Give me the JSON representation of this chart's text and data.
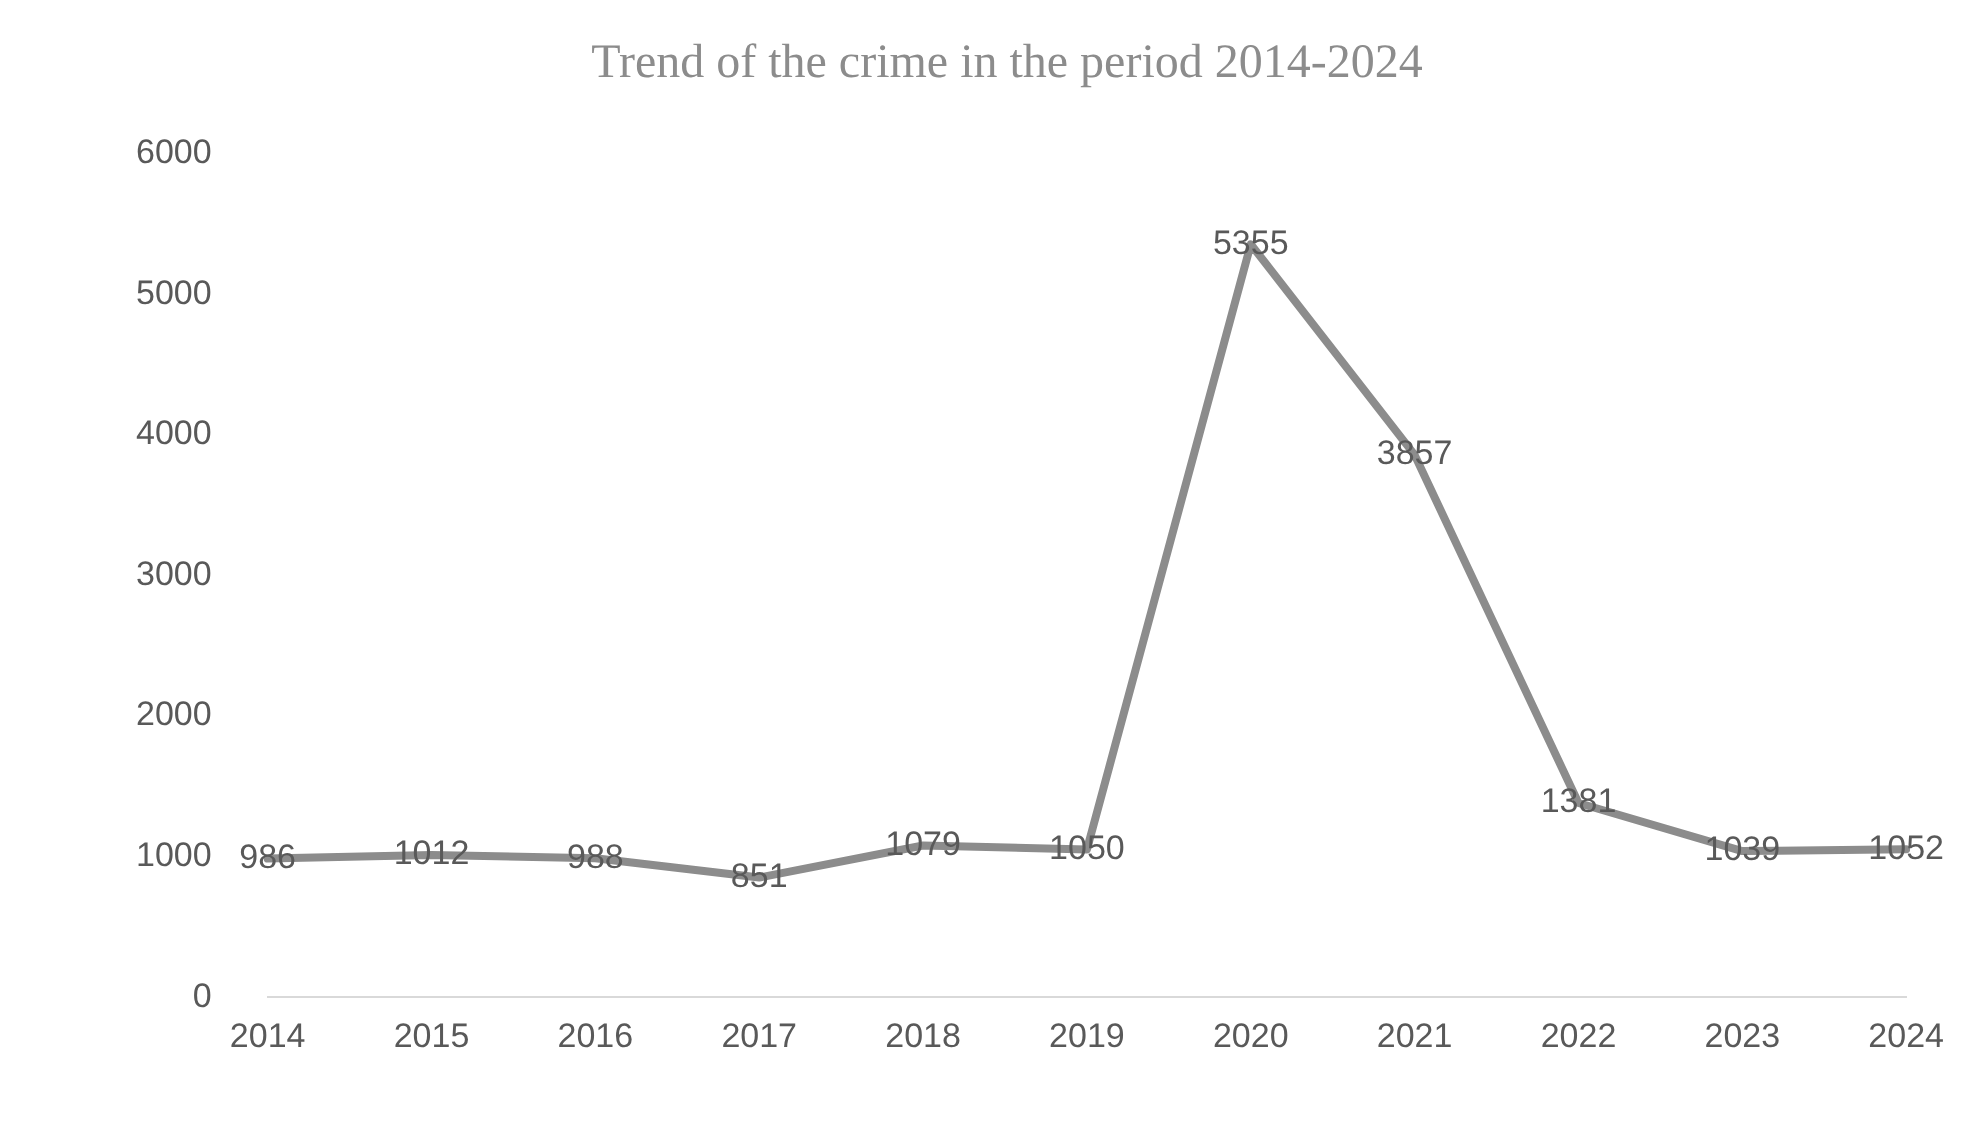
{
  "chart_data": {
    "type": "line",
    "title": "Trend of the crime in the period 2014-2024",
    "categories": [
      "2014",
      "2015",
      "2016",
      "2017",
      "2018",
      "2019",
      "2020",
      "2021",
      "2022",
      "2023",
      "2024"
    ],
    "series": [
      {
        "color": "#8c8c8c",
        "values": [
          986,
          1012,
          988,
          851,
          1079,
          1050,
          5355,
          3857,
          1381,
          1039,
          1052
        ]
      }
    ],
    "ylim": [
      0,
      6000
    ],
    "yticks": [
      0,
      1000,
      2000,
      3000,
      4000,
      5000,
      6000
    ],
    "grid": false,
    "legend": false,
    "marker": "none",
    "data_labels": true
  }
}
